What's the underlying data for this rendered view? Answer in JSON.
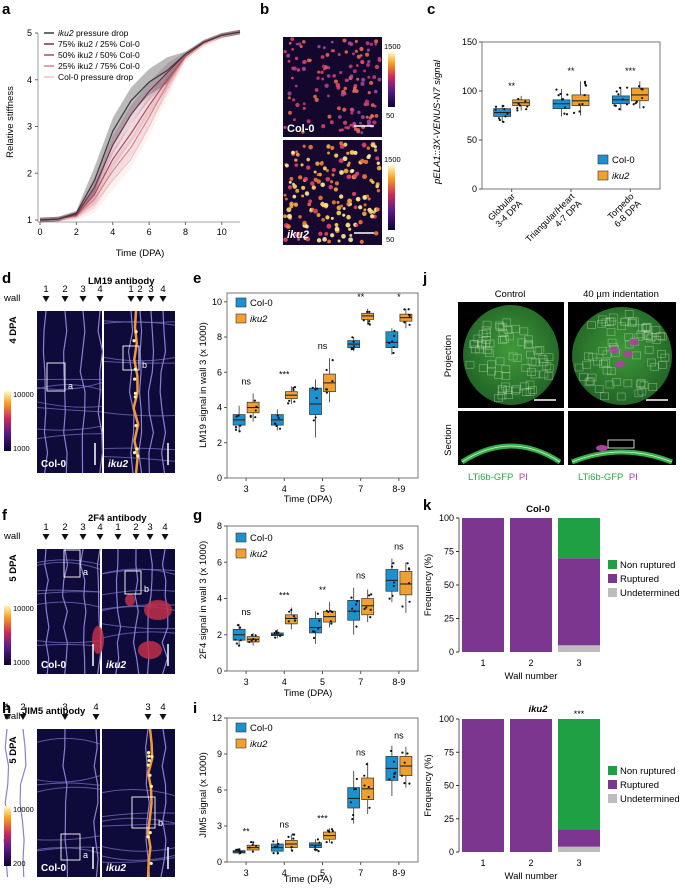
{
  "panels": {
    "a": {
      "letter": "a",
      "chart_data": {
        "type": "line",
        "xlabel": "Time (DPA)",
        "ylabel": "Relative stiffness",
        "xlim": [
          0,
          11
        ],
        "ylim": [
          1,
          5
        ],
        "xticks": [
          0,
          2,
          4,
          6,
          8,
          10
        ],
        "yticks": [
          1,
          2,
          3,
          4,
          5
        ],
        "x": [
          0,
          1,
          2,
          3,
          4,
          5,
          6,
          7,
          8,
          9,
          10,
          11
        ],
        "series": [
          {
            "name": "iku2 pressure drop",
            "color": "#3a3a3a",
            "values": [
              1.0,
              1.02,
              1.15,
              1.85,
              2.9,
              3.55,
              3.95,
              4.2,
              4.55,
              4.8,
              4.95,
              5.02
            ]
          },
          {
            "name": "75% iku2 / 25% Col-0",
            "color": "#7a2e4e",
            "values": [
              1.0,
              1.02,
              1.12,
              1.7,
              2.6,
              3.25,
              3.75,
              4.15,
              4.55,
              4.8,
              4.95,
              5.02
            ]
          },
          {
            "name": "50% iku2 / 50% Col-0",
            "color": "#b04a5e",
            "values": [
              1.0,
              1.02,
              1.1,
              1.55,
              2.3,
              2.85,
              3.45,
              4.0,
              4.5,
              4.8,
              4.95,
              5.02
            ]
          },
          {
            "name": "25% iku2 / 75% Col-0",
            "color": "#d9828e",
            "values": [
              1.0,
              1.02,
              1.08,
              1.45,
              2.05,
              2.55,
              3.2,
              3.9,
              4.5,
              4.78,
              4.94,
              5.02
            ]
          },
          {
            "name": "Col-0 pressure drop",
            "color": "#f0c0c0",
            "values": [
              1.0,
              1.02,
              1.05,
              1.35,
              1.85,
              2.3,
              3.0,
              3.8,
              4.45,
              4.75,
              4.93,
              5.02
            ]
          }
        ],
        "legend_prefix_italic": "iku2",
        "legend": [
          "pressure drop",
          "75% iku2 / 25% Col-0",
          "50% iku2 / 50% Col-0",
          "25% iku2 / 75% Col-0",
          "Col-0 pressure drop"
        ]
      }
    },
    "b": {
      "letter": "b",
      "top_label": "Col-0",
      "bottom_label": "iku2",
      "scale_max": "1500",
      "scale_min": "50"
    },
    "c": {
      "letter": "c",
      "chart_data": {
        "type": "box",
        "ylabel": "pELA1::3X-VENUS-N7 signal",
        "ylim": [
          0,
          150
        ],
        "yticks": [
          0,
          50,
          100,
          150
        ],
        "categories": [
          "Globular\n3-4 DPA",
          "Triangular/Heart\n4-7 DPA",
          "Torpedo\n6-8 DPA"
        ],
        "significance": [
          "**",
          "**",
          "***"
        ],
        "series": [
          {
            "name": "Col-0",
            "color": "#1d91d0",
            "boxes": [
              [
                68,
                74,
                78,
                82,
                86
              ],
              [
                74,
                82,
                87,
                91,
                102
              ],
              [
                80,
                87,
                91,
                95,
                104
              ]
            ]
          },
          {
            "name": "iku2",
            "color": "#f0a030",
            "boxes": [
              [
                80,
                85,
                88,
                91,
                95
              ],
              [
                75,
                85,
                90,
                96,
                110
              ],
              [
                82,
                90,
                96,
                103,
                110
              ]
            ]
          }
        ],
        "legend": [
          "Col-0",
          "iku2"
        ]
      }
    },
    "d": {
      "letter": "d",
      "title": "LM19 antibody",
      "wall_label": "wall",
      "dpa_label": "4 DPA",
      "left_numbers": [
        "1",
        "2",
        "3",
        "4"
      ],
      "right_numbers": [
        "1",
        "2",
        "3",
        "4"
      ],
      "box_a": "a",
      "box_b": "b",
      "left_caption": "Col-0",
      "right_caption": "iku2",
      "scale_max": "10000",
      "scale_min": "1000"
    },
    "e": {
      "letter": "e",
      "chart_data": {
        "type": "box",
        "xlabel": "Time (DPA)",
        "ylabel": "LM19 signal in wall 3 (x 1000)",
        "ylim": [
          0,
          10.5
        ],
        "yticks": [
          0,
          2,
          4,
          6,
          8,
          10
        ],
        "categories": [
          "3",
          "4",
          "5",
          "7",
          "8-9"
        ],
        "significance": [
          "ns",
          "***",
          "ns",
          "**",
          "*"
        ],
        "series": [
          {
            "name": "Col-0",
            "color": "#1d91d0",
            "boxes": [
              [
                2.6,
                3.0,
                3.3,
                3.6,
                4.1
              ],
              [
                2.7,
                3.0,
                3.3,
                3.6,
                3.9
              ],
              [
                2.3,
                3.6,
                4.2,
                5.1,
                5.6
              ],
              [
                7.2,
                7.4,
                7.6,
                7.8,
                8.0
              ],
              [
                7.0,
                7.4,
                7.7,
                8.3,
                8.5
              ]
            ]
          },
          {
            "name": "iku2",
            "color": "#f0a030",
            "boxes": [
              [
                3.2,
                3.7,
                4.0,
                4.3,
                4.8
              ],
              [
                4.2,
                4.5,
                4.7,
                4.9,
                5.2
              ],
              [
                4.3,
                4.9,
                5.4,
                5.9,
                6.8
              ],
              [
                8.7,
                9.0,
                9.2,
                9.35,
                9.6
              ],
              [
                8.5,
                8.9,
                9.1,
                9.3,
                9.6
              ]
            ]
          }
        ],
        "legend": [
          "Col-0",
          "iku2"
        ]
      }
    },
    "f": {
      "letter": "f",
      "title": "2F4 antibody",
      "wall_label": "wall",
      "dpa_label": "5 DPA",
      "left_numbers": [
        "1",
        "2",
        "3",
        "4"
      ],
      "right_numbers": [
        "1",
        "2",
        "3",
        "4"
      ],
      "box_a": "a",
      "box_b": "b",
      "left_caption": "Col-0",
      "right_caption": "iku2",
      "scale_max": "10000",
      "scale_min": "1000"
    },
    "g": {
      "letter": "g",
      "chart_data": {
        "type": "box",
        "xlabel": "Time (DPA)",
        "ylabel": "2F4 signal in wall 3 (x 1000)",
        "ylim": [
          0,
          8
        ],
        "yticks": [
          0,
          2,
          4,
          6,
          8
        ],
        "categories": [
          "3",
          "4",
          "5",
          "7",
          "8-9"
        ],
        "significance": [
          "ns",
          "***",
          "**",
          "ns",
          "ns"
        ],
        "series": [
          {
            "name": "Col-0",
            "color": "#1d91d0",
            "boxes": [
              [
                1.4,
                1.7,
                2.0,
                2.3,
                2.6
              ],
              [
                1.8,
                1.95,
                2.0,
                2.1,
                2.3
              ],
              [
                1.5,
                2.1,
                2.4,
                2.9,
                3.3
              ],
              [
                2.0,
                2.8,
                3.3,
                3.9,
                4.6
              ],
              [
                3.8,
                4.4,
                5.0,
                5.6,
                6.2
              ]
            ]
          },
          {
            "name": "iku2",
            "color": "#f0a030",
            "boxes": [
              [
                1.4,
                1.6,
                1.75,
                1.9,
                2.1
              ],
              [
                2.3,
                2.6,
                2.9,
                3.1,
                3.5
              ],
              [
                2.4,
                2.7,
                3.0,
                3.3,
                3.8
              ],
              [
                2.7,
                3.1,
                3.6,
                4.0,
                4.5
              ],
              [
                3.2,
                4.2,
                4.8,
                5.5,
                6.0
              ]
            ]
          }
        ],
        "legend": [
          "Col-0",
          "iku2"
        ]
      }
    },
    "h": {
      "letter": "h",
      "title": "JIM5 antibody",
      "wall_label": "wall",
      "dpa_label": "5 DPA",
      "left_numbers": [
        "1",
        "2",
        "3",
        "4"
      ],
      "right_numbers": [
        "3",
        "4"
      ],
      "box_a": "a",
      "box_b": "b",
      "left_caption": "Col-0",
      "right_caption": "iku2",
      "scale_max": "10000",
      "scale_min": "200"
    },
    "i": {
      "letter": "i",
      "chart_data": {
        "type": "box",
        "xlabel": "Time (DPA)",
        "ylabel": "JIM5 signal (x 1000)",
        "ylim": [
          0,
          12
        ],
        "yticks": [
          0,
          3,
          6,
          9,
          12
        ],
        "categories": [
          "3",
          "4",
          "5",
          "7",
          "8-9"
        ],
        "significance": [
          "**",
          "ns",
          "***",
          "ns",
          "ns"
        ],
        "series": [
          {
            "name": "Col-0",
            "color": "#1d91d0",
            "boxes": [
              [
                0.6,
                0.75,
                0.85,
                0.95,
                1.1
              ],
              [
                0.6,
                0.9,
                1.2,
                1.5,
                1.9
              ],
              [
                0.9,
                1.2,
                1.4,
                1.6,
                1.9
              ],
              [
                3.2,
                4.5,
                5.3,
                6.2,
                7.6
              ],
              [
                5.5,
                6.8,
                7.8,
                8.8,
                9.7
              ]
            ]
          },
          {
            "name": "iku2",
            "color": "#f0a030",
            "boxes": [
              [
                0.8,
                1.0,
                1.2,
                1.4,
                1.7
              ],
              [
                0.9,
                1.2,
                1.5,
                1.8,
                2.3
              ],
              [
                1.6,
                1.9,
                2.2,
                2.5,
                2.8
              ],
              [
                4.0,
                5.2,
                6.1,
                7.0,
                8.3
              ],
              [
                6.2,
                7.2,
                8.0,
                8.8,
                9.6
              ]
            ]
          }
        ],
        "legend": [
          "Col-0",
          "iku2"
        ]
      }
    },
    "j": {
      "letter": "j",
      "col_control": "Control",
      "col_indent": "40 µm indentation",
      "row_projection": "Projection",
      "row_section": "Section",
      "marker_green": "LTi6b-GFP",
      "marker_pi": "PI"
    },
    "k": {
      "letter": "k",
      "chart_data": [
        {
          "type": "stacked-bar",
          "title": "Col-0",
          "xlabel": "Wall number",
          "ylabel": "Frequency (%)",
          "categories": [
            "1",
            "2",
            "3"
          ],
          "yticks": [
            0,
            25,
            50,
            75,
            100
          ],
          "series": [
            {
              "name": "Undetermined",
              "color": "#bdbdbd",
              "values": [
                0,
                0,
                5
              ]
            },
            {
              "name": "Ruptured",
              "color": "#7c3690",
              "values": [
                100,
                100,
                65
              ]
            },
            {
              "name": "Non ruptured",
              "color": "#1fa045",
              "values": [
                0,
                0,
                30
              ]
            }
          ],
          "significance": [
            "",
            "",
            ""
          ],
          "legend": [
            "Non ruptured",
            "Ruptured",
            "Undetermined"
          ]
        },
        {
          "type": "stacked-bar",
          "title": "iku2",
          "xlabel": "Wall number",
          "ylabel": "Frequency (%)",
          "categories": [
            "1",
            "2",
            "3"
          ],
          "yticks": [
            0,
            25,
            50,
            75,
            100
          ],
          "series": [
            {
              "name": "Undetermined",
              "color": "#bdbdbd",
              "values": [
                0,
                0,
                4
              ]
            },
            {
              "name": "Ruptured",
              "color": "#7c3690",
              "values": [
                100,
                100,
                13
              ]
            },
            {
              "name": "Non ruptured",
              "color": "#1fa045",
              "values": [
                0,
                0,
                83
              ]
            }
          ],
          "significance": [
            "",
            "",
            "***"
          ],
          "legend": [
            "Non ruptured",
            "Ruptured",
            "Undetermined"
          ]
        }
      ]
    }
  }
}
